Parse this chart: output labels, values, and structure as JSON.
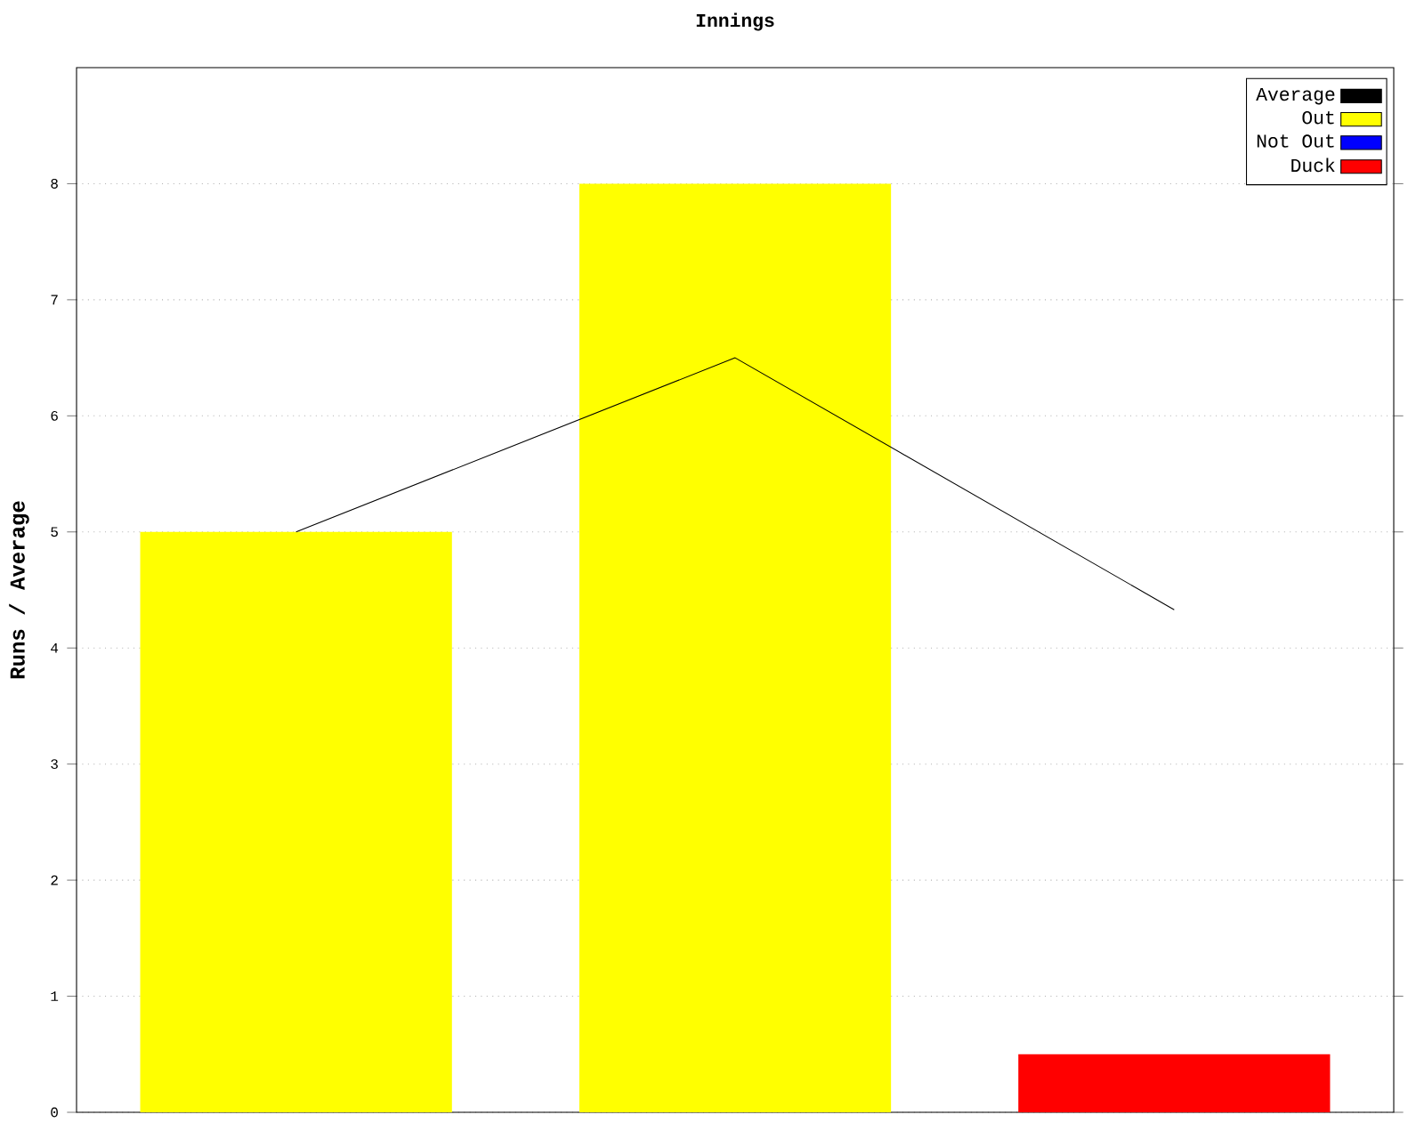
{
  "chart_data": {
    "type": "bar",
    "title": "Innings",
    "ylabel": "Runs / Average",
    "categories": [
      null,
      null,
      null
    ],
    "stacked": true,
    "series": [
      {
        "name": "Average",
        "type": "line",
        "color": "#000000",
        "values": [
          5,
          6.5,
          4.33
        ]
      },
      {
        "name": "Out",
        "color": "#ffff00",
        "values": [
          5,
          8,
          null
        ]
      },
      {
        "name": "Not Out",
        "color": "#0000ff",
        "values": [
          null,
          null,
          null
        ]
      },
      {
        "name": "Duck",
        "color": "#ff0000",
        "values": [
          null,
          null,
          0.5
        ]
      }
    ],
    "ylim": [
      0,
      9
    ],
    "yticks": [
      0,
      1,
      2,
      3,
      4,
      5,
      6,
      7,
      8
    ],
    "grid": "y",
    "legend": "top right"
  }
}
